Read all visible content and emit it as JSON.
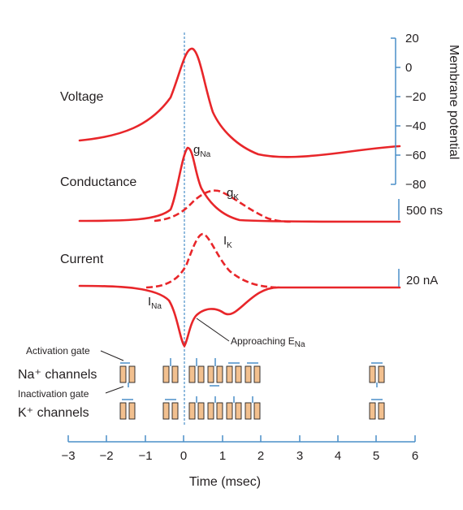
{
  "panels": {
    "voltage": "Voltage",
    "conductance": "Conductance",
    "current": "Current"
  },
  "traces": {
    "g_na": {
      "main": "g",
      "sub": "Na"
    },
    "g_k": {
      "main": "g",
      "sub": "K"
    },
    "i_k": {
      "main": "I",
      "sub": "K"
    },
    "i_na": {
      "main": "I",
      "sub": "Na"
    },
    "approaching": {
      "main": "Approaching E",
      "sub": "Na"
    }
  },
  "membrane_axis": {
    "label": "Membrane potential",
    "ticks": [
      "20",
      "0",
      "−20",
      "−40",
      "−60",
      "−80"
    ]
  },
  "scale_bars": {
    "conductance": "500 ns",
    "current": "20 nA"
  },
  "gates": {
    "activation": "Activation gate",
    "inactivation": "Inactivation gate",
    "na_channels": "Na⁺ channels",
    "k_channels": "K⁺ channels"
  },
  "time_axis": {
    "label": "Time (msec)",
    "ticks": [
      "−3",
      "−2",
      "−1",
      "0",
      "1",
      "2",
      "3",
      "4",
      "5",
      "6"
    ]
  },
  "colors": {
    "trace": "#e8262a",
    "axis": "#4a8fc9",
    "dashed_line": "#4a8fc9",
    "channel_fill": "#f2c08f",
    "text": "#231f20"
  }
}
